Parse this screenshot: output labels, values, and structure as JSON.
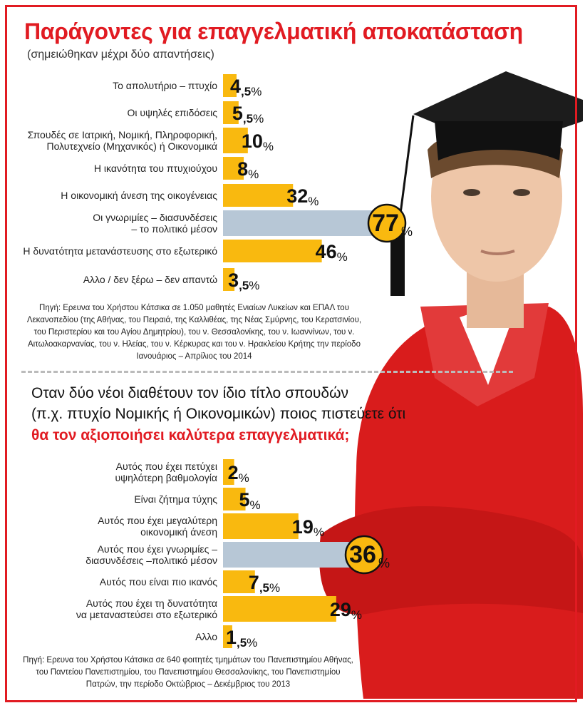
{
  "colors": {
    "accent_red": "#e11b22",
    "bar_yellow": "#f9b90f",
    "bar_highlight": "#b7c7d6",
    "badge_yellow": "#f9b90f"
  },
  "icons": [
    "student-illustration"
  ],
  "chart_data": [
    {
      "type": "bar",
      "orientation": "horizontal",
      "title": "Παράγοντες για επαγγελματική αποκατάσταση",
      "subtitle": "(σημειώθηκαν μέχρι δύο απαντήσεις)",
      "categories": [
        [
          "Το απολυτήριο – πτυχίο"
        ],
        [
          "Οι υψηλές επιδόσεις"
        ],
        [
          "Σπουδές σε Ιατρική, Νομική, Πληροφορική,",
          "Πολυτεχνείο (Μηχανικός) ή Οικονομικά"
        ],
        [
          "Η ικανότητα του πτυχιούχου"
        ],
        [
          "Η  οικονομική άνεση της οικογένειας"
        ],
        [
          "Οι γνωριμίες – διασυνδέσεις",
          "– το πολιτικό μέσον"
        ],
        [
          "Η δυνατότητα μετανάστευσης στο εξωτερικό"
        ],
        [
          "Αλλο / δεν ξέρω – δεν απαντώ"
        ]
      ],
      "values": [
        4.5,
        5.5,
        10,
        8,
        32,
        77,
        46,
        3.5
      ],
      "value_labels": [
        {
          "int": "4",
          "dec": ",5"
        },
        {
          "int": "5",
          "dec": ",5"
        },
        {
          "int": "10",
          "dec": ""
        },
        {
          "int": "8",
          "dec": ""
        },
        {
          "int": "32",
          "dec": ""
        },
        {
          "int": "77",
          "dec": ""
        },
        {
          "int": "46",
          "dec": ""
        },
        {
          "int": "3",
          "dec": ",5"
        }
      ],
      "unit": "%",
      "highlight_index": 5,
      "xlim": [
        0,
        77
      ],
      "source": "Πηγή: Ερευνα του Χρήστου Κάτσικα σε 1.050 μαθητές Ενιαίων Λυκείων και ΕΠΑΛ του Λεκανοπεδίου (της Αθήνας, του Πειραιά, της Καλλιθέας, της Νέας Σμύρνης, του Κερατσινίου, του Περιστερίου και του Αγίου Δημητρίου), του ν. Θεσσαλονίκης, του ν. Ιωαννίνων, του ν. Αιτωλοακαρνανίας, του ν. Ηλείας, του ν. Κέρκυρας και του ν. Ηρακλείου Κρήτης την περίοδο Ιανουάριος – Απρίλιος του 2014"
    },
    {
      "type": "bar",
      "orientation": "horizontal",
      "title_lines": [
        "Οταν δύο νέοι διαθέτουν τον ίδιο τίτλο σπουδών",
        "(π.χ. πτυχίο Νομικής ή Οικονομικών) ποιος πιστεύετε ότι",
        "θα τον αξιοποιήσει καλύτερα επαγγελματικά;"
      ],
      "categories": [
        [
          "Αυτός που έχει πετύχει",
          "υψηλότερη  βαθμολογία"
        ],
        [
          "Είναι ζήτημα τύχης"
        ],
        [
          "Αυτός που έχει μεγαλύτερη",
          "οικονομική άνεση"
        ],
        [
          "Αυτός που έχει γνωριμίες –",
          "διασυνδέσεις –πολιτικό μέσον"
        ],
        [
          "Αυτός που είναι πιο ικανός"
        ],
        [
          "Αυτός που έχει τη δυνατότητα",
          "να μεταναστεύσει στο εξωτερικό"
        ],
        [
          "Αλλο"
        ]
      ],
      "values": [
        2,
        5,
        19,
        36,
        7.5,
        29,
        1.5
      ],
      "value_labels": [
        {
          "int": "2",
          "dec": ""
        },
        {
          "int": "5",
          "dec": ""
        },
        {
          "int": "19",
          "dec": ""
        },
        {
          "int": "36",
          "dec": ""
        },
        {
          "int": "7",
          "dec": ",5"
        },
        {
          "int": "29",
          "dec": ""
        },
        {
          "int": "1",
          "dec": ",5"
        }
      ],
      "unit": "%",
      "highlight_index": 3,
      "xlim": [
        0,
        36
      ],
      "source": "Πηγή: Ερευνα του Χρήστου Κάτσικα σε 640 φοιτητές τμημάτων του Πανεπιστημίου Αθήνας, του Παντείου Πανεπιστημίου, του Πανεπιστημίου Θεσσαλονίκης, του Πανεπιστημίου Πατρών, την περίοδο  Οκτώβριος – Δεκέμβριος του 2013"
    }
  ]
}
